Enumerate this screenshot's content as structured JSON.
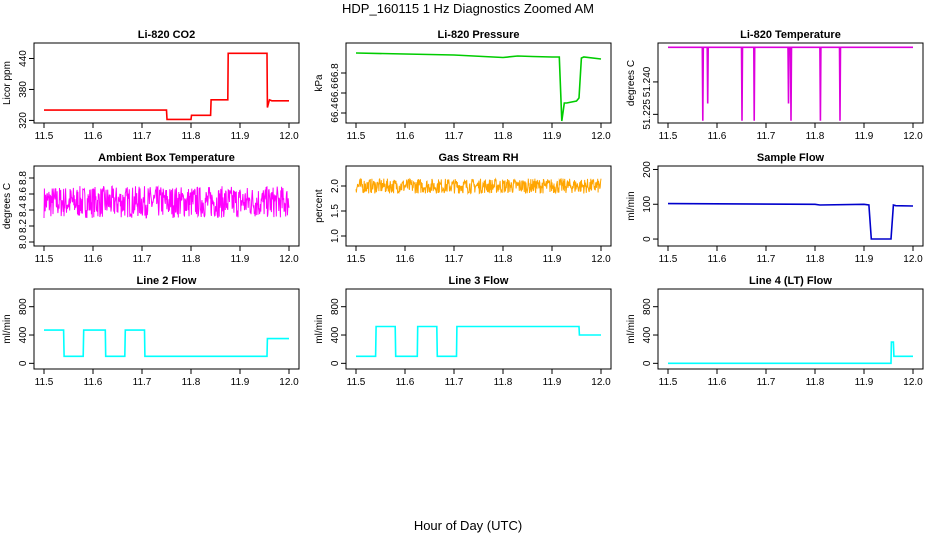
{
  "page": {
    "title": "HDP_160115  1 Hz Diagnostics Zoomed AM",
    "xlabel": "Hour of Day (UTC)"
  },
  "chart_data": [
    {
      "type": "line",
      "title": "Li-820 CO2",
      "ylabel": "Licor ppm",
      "color": "#ff0000",
      "xlim": [
        11.5,
        12.0
      ],
      "xticks": [
        "11.5",
        "11.6",
        "11.7",
        "11.8",
        "11.9",
        "12.0"
      ],
      "ylim": [
        315,
        470
      ],
      "yticks": [
        "320",
        "380",
        "440"
      ],
      "series": [
        {
          "x": [
            11.5,
            11.75,
            11.751,
            11.8,
            11.801,
            11.84,
            11.841,
            11.875,
            11.876,
            11.955,
            11.956,
            11.96,
            11.965,
            12.0
          ],
          "y": [
            340,
            340,
            322,
            322,
            330,
            330,
            360,
            360,
            450,
            450,
            345,
            360,
            358,
            358
          ]
        }
      ]
    },
    {
      "type": "line",
      "title": "Li-820 Pressure",
      "ylabel": "kPa",
      "color": "#00cc00",
      "xlim": [
        11.5,
        12.0
      ],
      "xticks": [
        "11.5",
        "11.6",
        "11.7",
        "11.8",
        "11.9",
        "12.0"
      ],
      "ylim": [
        66.3,
        67.1
      ],
      "yticks": [
        "66.4",
        "66.6",
        "66.8"
      ],
      "series": [
        {
          "x": [
            11.5,
            11.6,
            11.7,
            11.8,
            11.83,
            11.86,
            11.9,
            11.915,
            11.92,
            11.925,
            11.93,
            11.95,
            11.955,
            11.96,
            11.965,
            12.0
          ],
          "y": [
            67.0,
            66.99,
            66.98,
            66.955,
            66.97,
            66.965,
            66.96,
            66.96,
            66.32,
            66.5,
            66.5,
            66.52,
            66.55,
            66.95,
            66.96,
            66.94
          ]
        }
      ]
    },
    {
      "type": "line",
      "title": "Li-820 Temperature",
      "ylabel": "degrees C",
      "color": "#dd00dd",
      "xlim": [
        11.5,
        12.0
      ],
      "xticks": [
        "11.5",
        "11.6",
        "11.7",
        "11.8",
        "11.9",
        "12.0"
      ],
      "ylim": [
        51.221,
        51.258
      ],
      "yticks": [
        "51.225",
        "51.240"
      ],
      "series": [
        {
          "x": [
            11.5,
            11.57,
            11.571,
            11.572,
            11.573,
            11.58,
            11.581,
            11.582,
            11.583,
            11.65,
            11.651,
            11.652,
            11.675,
            11.676,
            11.677,
            11.745,
            11.746,
            11.747,
            11.75,
            11.751,
            11.752,
            11.81,
            11.811,
            11.812,
            11.85,
            11.851,
            11.852,
            12.0
          ],
          "y": [
            51.256,
            51.256,
            51.222,
            51.256,
            51.256,
            51.256,
            51.23,
            51.256,
            51.256,
            51.256,
            51.222,
            51.256,
            51.256,
            51.222,
            51.256,
            51.256,
            51.23,
            51.256,
            51.256,
            51.222,
            51.256,
            51.256,
            51.222,
            51.256,
            51.256,
            51.222,
            51.256,
            51.256
          ]
        }
      ]
    },
    {
      "type": "line",
      "title": "Ambient Box Temperature",
      "ylabel": "degrees C",
      "color": "#ff00ff",
      "xlim": [
        11.5,
        12.0
      ],
      "xticks": [
        "11.5",
        "11.6",
        "11.7",
        "11.8",
        "11.9",
        "12.0"
      ],
      "ylim": [
        7.95,
        8.95
      ],
      "yticks": [
        "8.0",
        "8.2",
        "8.4",
        "8.6",
        "8.8"
      ],
      "series": [
        {
          "x": [
            11.5,
            12.0
          ],
          "y": [
            8.5,
            8.5
          ],
          "noise": 0.2
        }
      ]
    },
    {
      "type": "line",
      "title": "Gas Stream RH",
      "ylabel": "percent",
      "color": "#ffa500",
      "xlim": [
        11.5,
        12.0
      ],
      "xticks": [
        "11.5",
        "11.6",
        "11.7",
        "11.8",
        "11.9",
        "12.0"
      ],
      "ylim": [
        0.8,
        2.4
      ],
      "yticks": [
        "1.0",
        "1.5",
        "2.0"
      ],
      "series": [
        {
          "x": [
            11.5,
            12.0
          ],
          "y": [
            2.0,
            2.0
          ],
          "noise": 0.15
        }
      ]
    },
    {
      "type": "line",
      "title": "Sample Flow",
      "ylabel": "ml/min",
      "color": "#0000cc",
      "xlim": [
        11.5,
        12.0
      ],
      "xticks": [
        "11.5",
        "11.6",
        "11.7",
        "11.8",
        "11.9",
        "12.0"
      ],
      "ylim": [
        -20,
        210
      ],
      "yticks": [
        "0",
        "100",
        "200"
      ],
      "series": [
        {
          "x": [
            11.5,
            11.8,
            11.81,
            11.9,
            11.91,
            11.915,
            11.955,
            11.96,
            11.965,
            12.0
          ],
          "y": [
            102,
            100,
            98,
            100,
            98,
            0,
            0,
            98,
            96,
            95
          ]
        }
      ]
    },
    {
      "type": "line",
      "title": "Line 2 Flow",
      "ylabel": "ml/min",
      "color": "#00ffff",
      "xlim": [
        11.5,
        12.0
      ],
      "xticks": [
        "11.5",
        "11.6",
        "11.7",
        "11.8",
        "11.9",
        "12.0"
      ],
      "ylim": [
        -80,
        1050
      ],
      "yticks": [
        "0",
        "400",
        "800"
      ],
      "series": [
        {
          "x": [
            11.5,
            11.54,
            11.541,
            11.58,
            11.581,
            11.625,
            11.626,
            11.665,
            11.666,
            11.705,
            11.706,
            11.955,
            11.956,
            12.0
          ],
          "y": [
            470,
            470,
            100,
            100,
            470,
            470,
            100,
            100,
            470,
            470,
            100,
            100,
            350,
            350
          ]
        }
      ]
    },
    {
      "type": "line",
      "title": "Line 3 Flow",
      "ylabel": "ml/min",
      "color": "#00ffff",
      "xlim": [
        11.5,
        12.0
      ],
      "xticks": [
        "11.5",
        "11.6",
        "11.7",
        "11.8",
        "11.9",
        "12.0"
      ],
      "ylim": [
        -80,
        1050
      ],
      "yticks": [
        "0",
        "400",
        "800"
      ],
      "series": [
        {
          "x": [
            11.5,
            11.54,
            11.541,
            11.58,
            11.581,
            11.625,
            11.626,
            11.665,
            11.666,
            11.705,
            11.706,
            11.955,
            11.956,
            12.0
          ],
          "y": [
            100,
            100,
            520,
            520,
            100,
            100,
            520,
            520,
            100,
            100,
            520,
            520,
            400,
            400
          ]
        }
      ]
    },
    {
      "type": "line",
      "title": "Line 4 (LT) Flow",
      "ylabel": "ml/min",
      "color": "#00ffff",
      "xlim": [
        11.5,
        12.0
      ],
      "xticks": [
        "11.5",
        "11.6",
        "11.7",
        "11.8",
        "11.9",
        "12.0"
      ],
      "ylim": [
        -80,
        1050
      ],
      "yticks": [
        "0",
        "400",
        "800"
      ],
      "series": [
        {
          "x": [
            11.5,
            11.955,
            11.956,
            11.96,
            11.961,
            12.0
          ],
          "y": [
            0,
            0,
            300,
            300,
            100,
            100
          ]
        }
      ]
    }
  ]
}
